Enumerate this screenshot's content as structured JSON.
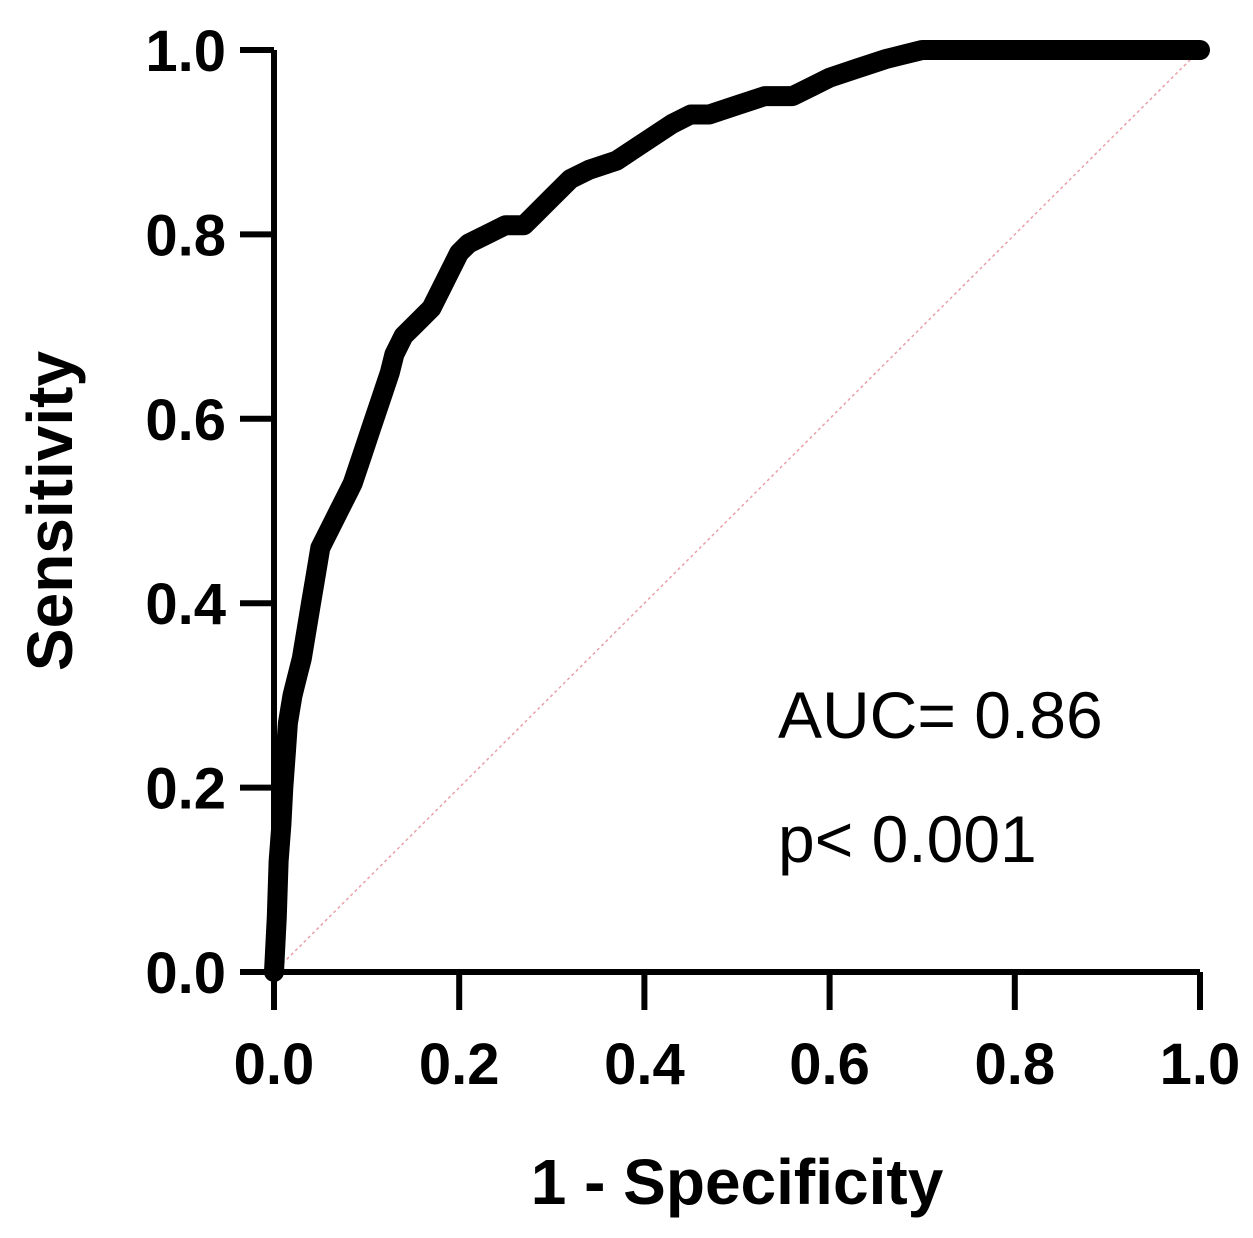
{
  "chart_data": {
    "type": "line",
    "title": "",
    "xlabel": "1 - Specificity",
    "ylabel": "Sensitivity",
    "xlim": [
      0,
      1
    ],
    "ylim": [
      0,
      1
    ],
    "x_ticks": [
      "0.0",
      "0.2",
      "0.4",
      "0.6",
      "0.8",
      "1.0"
    ],
    "y_ticks": [
      "0.0",
      "0.2",
      "0.4",
      "0.6",
      "0.8",
      "1.0"
    ],
    "grid": false,
    "annotations": [
      "AUC= 0.86",
      "p< 0.001"
    ],
    "reference_line_color": "#e8a0a8",
    "series": [
      {
        "color": "#000000",
        "x": [
          0.0,
          0.003,
          0.005,
          0.008,
          0.01,
          0.013,
          0.015,
          0.02,
          0.025,
          0.03,
          0.035,
          0.04,
          0.045,
          0.05,
          0.055,
          0.06,
          0.07,
          0.08,
          0.085,
          0.095,
          0.105,
          0.115,
          0.125,
          0.13,
          0.14,
          0.15,
          0.16,
          0.17,
          0.18,
          0.19,
          0.2,
          0.21,
          0.23,
          0.25,
          0.27,
          0.28,
          0.3,
          0.32,
          0.34,
          0.37,
          0.4,
          0.43,
          0.45,
          0.47,
          0.5,
          0.53,
          0.56,
          0.58,
          0.6,
          0.63,
          0.66,
          0.68,
          0.7,
          0.72,
          0.75,
          0.8,
          0.85,
          0.9,
          0.95,
          1.0
        ],
        "y": [
          0.0,
          0.06,
          0.12,
          0.16,
          0.2,
          0.24,
          0.27,
          0.3,
          0.32,
          0.34,
          0.37,
          0.4,
          0.43,
          0.46,
          0.47,
          0.48,
          0.5,
          0.52,
          0.53,
          0.56,
          0.59,
          0.62,
          0.65,
          0.67,
          0.69,
          0.7,
          0.71,
          0.72,
          0.74,
          0.76,
          0.78,
          0.79,
          0.8,
          0.81,
          0.81,
          0.82,
          0.84,
          0.86,
          0.87,
          0.88,
          0.9,
          0.92,
          0.93,
          0.93,
          0.94,
          0.95,
          0.95,
          0.96,
          0.97,
          0.98,
          0.99,
          0.995,
          1.0,
          1.0,
          1.0,
          1.0,
          1.0,
          1.0,
          1.0,
          1.0
        ]
      }
    ]
  }
}
